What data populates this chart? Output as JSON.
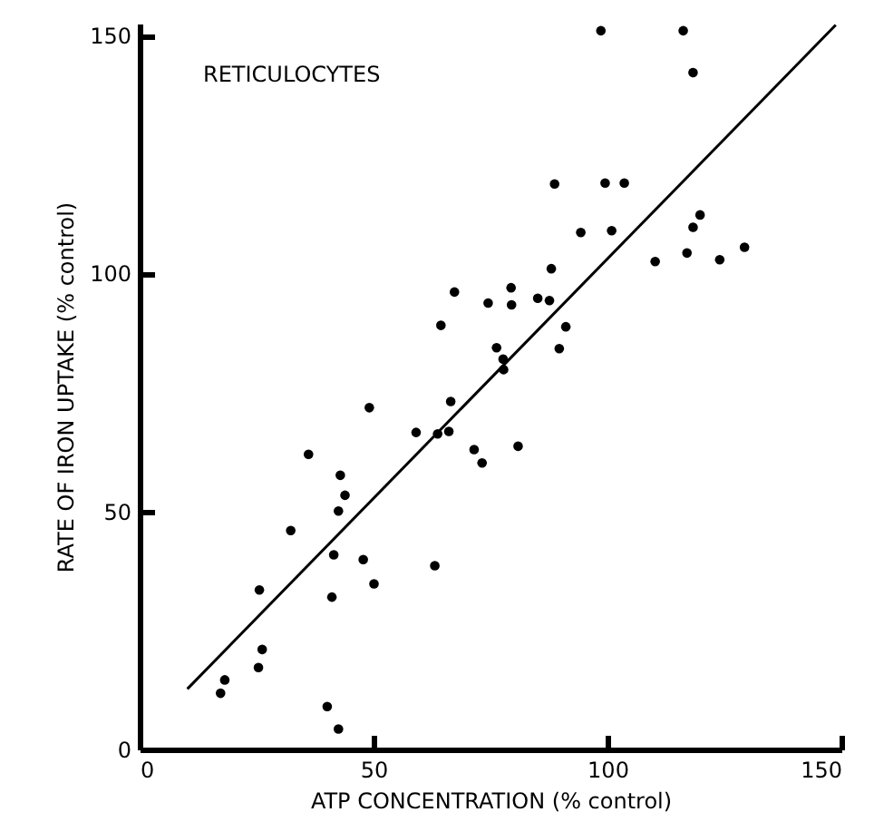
{
  "chart_data": {
    "type": "scatter",
    "xlabel": "ATP CONCENTRATION (% control)",
    "ylabel": "RATE OF IRON UPTAKE (% control)",
    "annotations": [
      "RETICULOCYTES"
    ],
    "xlim": [
      0,
      150
    ],
    "xticks": [
      0,
      50,
      100,
      150
    ],
    "ylim": [
      0,
      152.5
    ],
    "yticks": [
      0,
      50,
      100,
      150
    ],
    "grid": false,
    "marker": "circle",
    "series": [
      {
        "color": "#000000",
        "x": [
          98.6,
          116.2,
          118.3,
          88.7,
          99.5,
          103.6,
          94.3,
          100.9,
          119.8,
          118.3,
          129.3,
          110.2,
          117,
          124,
          88,
          67.3,
          74.5,
          79.4,
          79.5,
          85.1,
          87.6,
          64.4,
          91.1,
          76.3,
          89.7,
          77.7,
          77.8,
          66.5,
          49.1,
          59.1,
          63.7,
          66.1,
          71.5,
          80.9,
          73.2,
          36.1,
          42.9,
          43.9,
          42.5,
          32.3,
          41.5,
          47.8,
          63.1,
          50.1,
          25.6,
          41.1,
          26.2,
          25.4,
          18.2,
          17.3,
          40.1,
          42.5
        ],
        "values": [
          151,
          151,
          142.2,
          118.8,
          119,
          119,
          108.6,
          109,
          112.3,
          109.7,
          105.5,
          102.5,
          104.3,
          102.9,
          101,
          96.1,
          93.8,
          97,
          93.4,
          94.8,
          94.3,
          89.1,
          88.8,
          84.4,
          84.2,
          82,
          79.8,
          73.1,
          71.8,
          66.6,
          66.3,
          66.8,
          63,
          63.7,
          60.2,
          62,
          57.6,
          53.4,
          50.1,
          46,
          40.9,
          39.9,
          38.6,
          34.8,
          33.5,
          32,
          21,
          17.2,
          14.6,
          11.8,
          9,
          4.3
        ]
      },
      {
        "type": "line",
        "color": "#000000",
        "line_style": "solid",
        "marker": "none",
        "x": [
          10.2,
          148.8
        ],
        "values": [
          12.7,
          152.2
        ]
      }
    ]
  }
}
